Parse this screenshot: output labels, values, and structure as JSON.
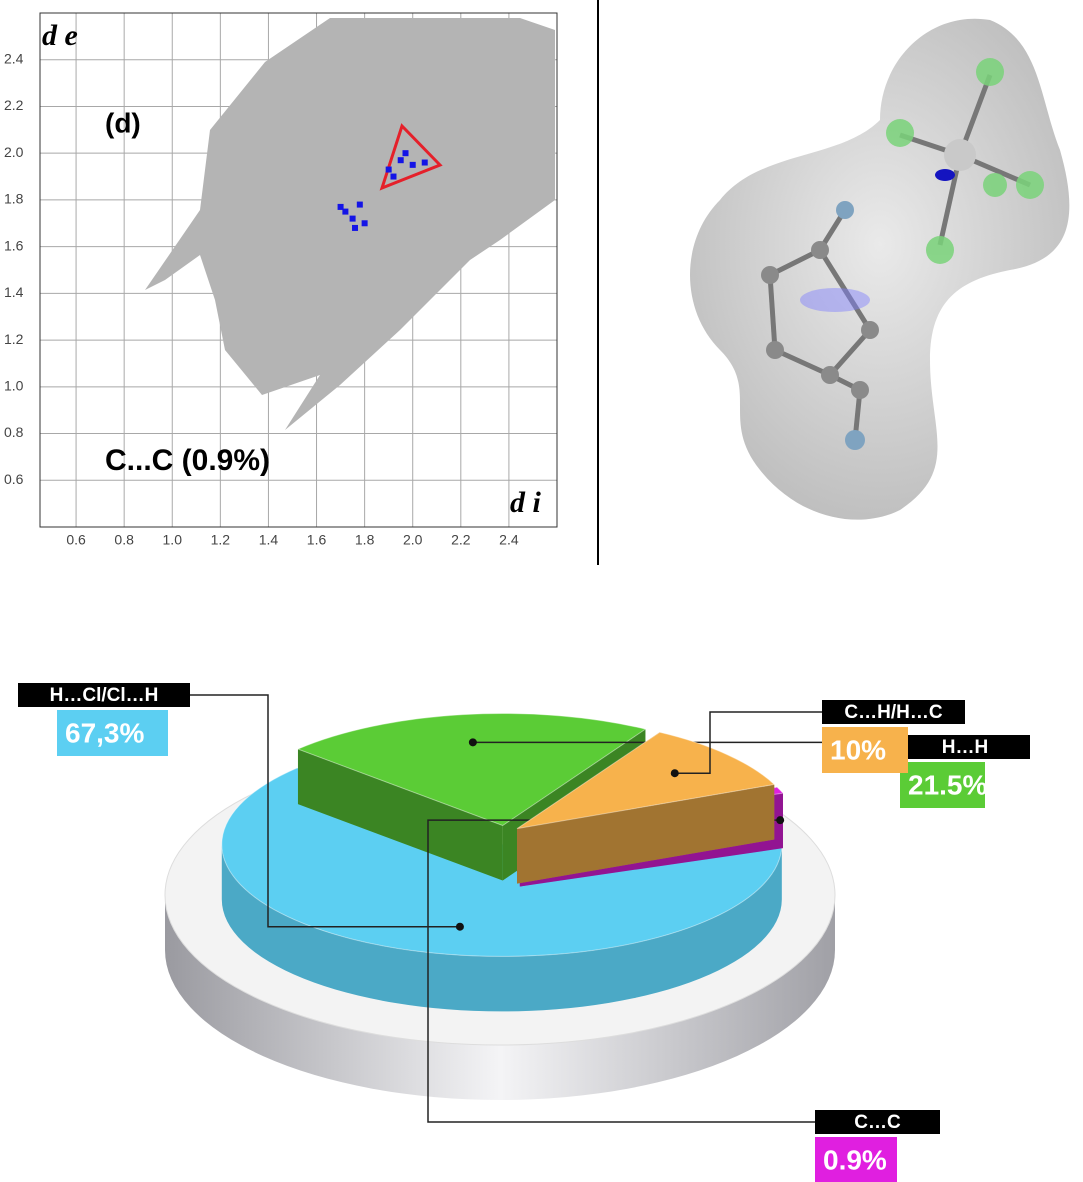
{
  "chart_data": [
    {
      "type": "scatter",
      "xlabel": "d i",
      "ylabel": "d e",
      "annotations": [
        "(d)",
        "C...C (0.9%)"
      ],
      "xlim": [
        0.45,
        2.6
      ],
      "ylim": [
        0.4,
        2.6
      ],
      "xticks": [
        0.6,
        0.8,
        {
          "value": 1,
          "label": "1.0"
        },
        1.2,
        1.4,
        1.6,
        1.8,
        {
          "value": 2,
          "label": "2.0"
        },
        2.2,
        2.4
      ],
      "yticks": [
        0.6,
        0.8,
        {
          "value": 1,
          "label": "1.0"
        },
        1.2,
        1.4,
        1.6,
        1.8,
        {
          "value": 2,
          "label": "2.0"
        },
        2.2,
        2.4
      ],
      "grid": true,
      "series": [
        {
          "color": "#1414e6",
          "x": [
            1.95,
            2.0,
            1.9,
            1.97,
            2.05,
            1.92,
            1.72,
            1.75,
            1.78,
            1.7,
            1.8,
            1.76
          ],
          "y": [
            1.97,
            1.95,
            1.93,
            2.0,
            1.96,
            1.9,
            1.75,
            1.72,
            1.78,
            1.77,
            1.7,
            1.68
          ]
        }
      ]
    },
    {
      "type": "pie",
      "categories": [
        "H…Cl/Cl…H",
        "H…H",
        "C…H/H…C",
        "C…C"
      ],
      "values": [
        67.3,
        21.5,
        10,
        0.9
      ],
      "value_labels": [
        "67,3%",
        "21.5%",
        "10%",
        "0.9%"
      ],
      "colors": [
        "#5ccff2",
        "#5bcc36",
        "#f7b24c",
        "#e01fe0"
      ]
    }
  ]
}
